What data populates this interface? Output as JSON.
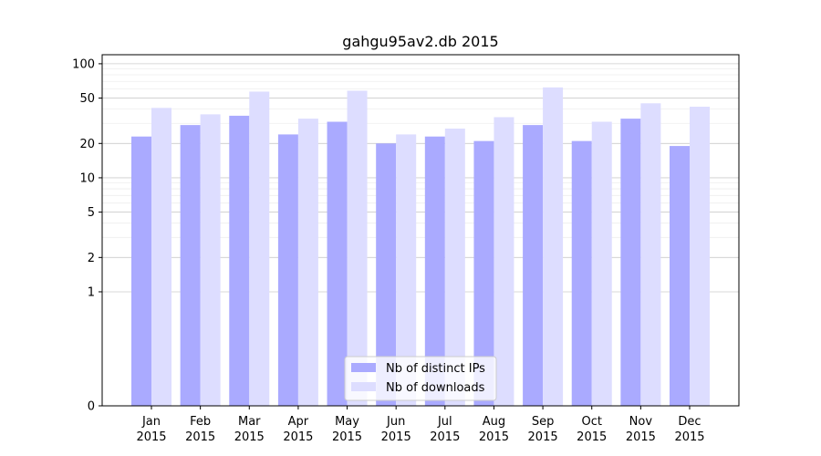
{
  "chart_data": {
    "type": "bar",
    "title": "gahgu95av2.db 2015",
    "xlabel": "",
    "ylabel": "",
    "yscale": "symlog",
    "y_ticks": [
      0,
      1,
      2,
      5,
      10,
      20,
      50,
      100
    ],
    "y_tick_labels": [
      "0",
      "1",
      "2",
      "5",
      "10",
      "20",
      "50",
      "100"
    ],
    "ylim": [
      0,
      120
    ],
    "grid": "horizontal",
    "legend_position": "bottom-center",
    "categories": [
      [
        "Jan",
        "2015"
      ],
      [
        "Feb",
        "2015"
      ],
      [
        "Mar",
        "2015"
      ],
      [
        "Apr",
        "2015"
      ],
      [
        "May",
        "2015"
      ],
      [
        "Jun",
        "2015"
      ],
      [
        "Jul",
        "2015"
      ],
      [
        "Aug",
        "2015"
      ],
      [
        "Sep",
        "2015"
      ],
      [
        "Oct",
        "2015"
      ],
      [
        "Nov",
        "2015"
      ],
      [
        "Dec",
        "2015"
      ]
    ],
    "series": [
      {
        "name": "Nb of distinct IPs",
        "color": "#aaaaff",
        "values": [
          23,
          29,
          35,
          24,
          31,
          20,
          23,
          21,
          29,
          21,
          33,
          19
        ]
      },
      {
        "name": "Nb of downloads",
        "color": "#ddddff",
        "values": [
          41,
          36,
          57,
          33,
          58,
          24,
          27,
          34,
          62,
          31,
          45,
          42
        ]
      }
    ]
  }
}
